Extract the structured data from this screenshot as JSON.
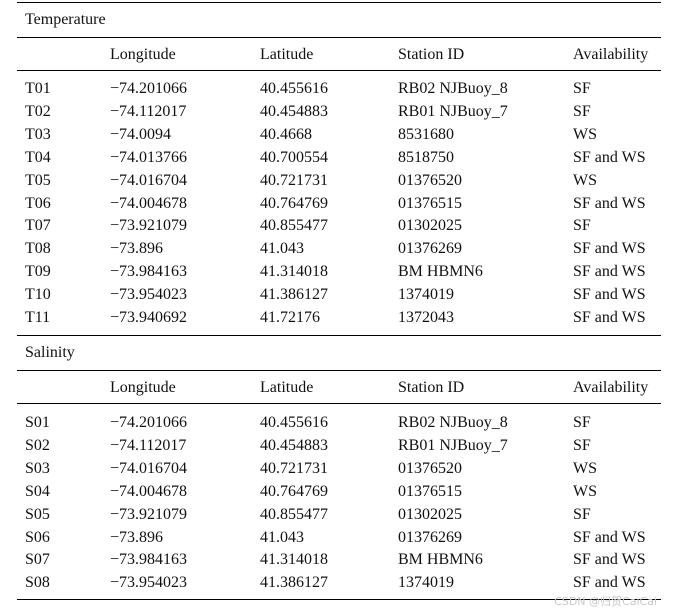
{
  "columns": [
    "",
    "Longitude",
    "Latitude",
    "Station ID",
    "Availability"
  ],
  "temperature": {
    "title": "Temperature",
    "rows": [
      [
        "T01",
        "−74.201066",
        "40.455616",
        "RB02 NJBuoy_8",
        "SF"
      ],
      [
        "T02",
        "−74.112017",
        "40.454883",
        "RB01 NJBuoy_7",
        "SF"
      ],
      [
        "T03",
        "−74.0094",
        "40.4668",
        "8531680",
        "WS"
      ],
      [
        "T04",
        "−74.013766",
        "40.700554",
        "8518750",
        "SF and WS"
      ],
      [
        "T05",
        "−74.016704",
        "40.721731",
        "01376520",
        "WS"
      ],
      [
        "T06",
        "−74.004678",
        "40.764769",
        "01376515",
        "SF and WS"
      ],
      [
        "T07",
        "−73.921079",
        "40.855477",
        "01302025",
        "SF"
      ],
      [
        "T08",
        "−73.896",
        "41.043",
        "01376269",
        "SF and WS"
      ],
      [
        "T09",
        "−73.984163",
        "41.314018",
        "BM HBMN6",
        "SF and WS"
      ],
      [
        "T10",
        "−73.954023",
        "41.386127",
        "1374019",
        "SF and WS"
      ],
      [
        "T11",
        "−73.940692",
        "41.72176",
        "1372043",
        "SF and WS"
      ]
    ]
  },
  "salinity": {
    "title": "Salinity",
    "rows": [
      [
        "S01",
        "−74.201066",
        "40.455616",
        "RB02 NJBuoy_8",
        "SF"
      ],
      [
        "S02",
        "−74.112017",
        "40.454883",
        "RB01 NJBuoy_7",
        "SF"
      ],
      [
        "S03",
        "−74.016704",
        "40.721731",
        "01376520",
        "WS"
      ],
      [
        "S04",
        "−74.004678",
        "40.764769",
        "01376515",
        "WS"
      ],
      [
        "S05",
        "−73.921079",
        "40.855477",
        "01302025",
        "SF"
      ],
      [
        "S06",
        "−73.896",
        "41.043",
        "01376269",
        "SF and WS"
      ],
      [
        "S07",
        "−73.984163",
        "41.314018",
        "BM HBMN6",
        "SF and WS"
      ],
      [
        "S08",
        "−73.954023",
        "41.386127",
        "1374019",
        "SF and WS"
      ]
    ]
  },
  "watermark": "CSDN @归贺CaiCai"
}
